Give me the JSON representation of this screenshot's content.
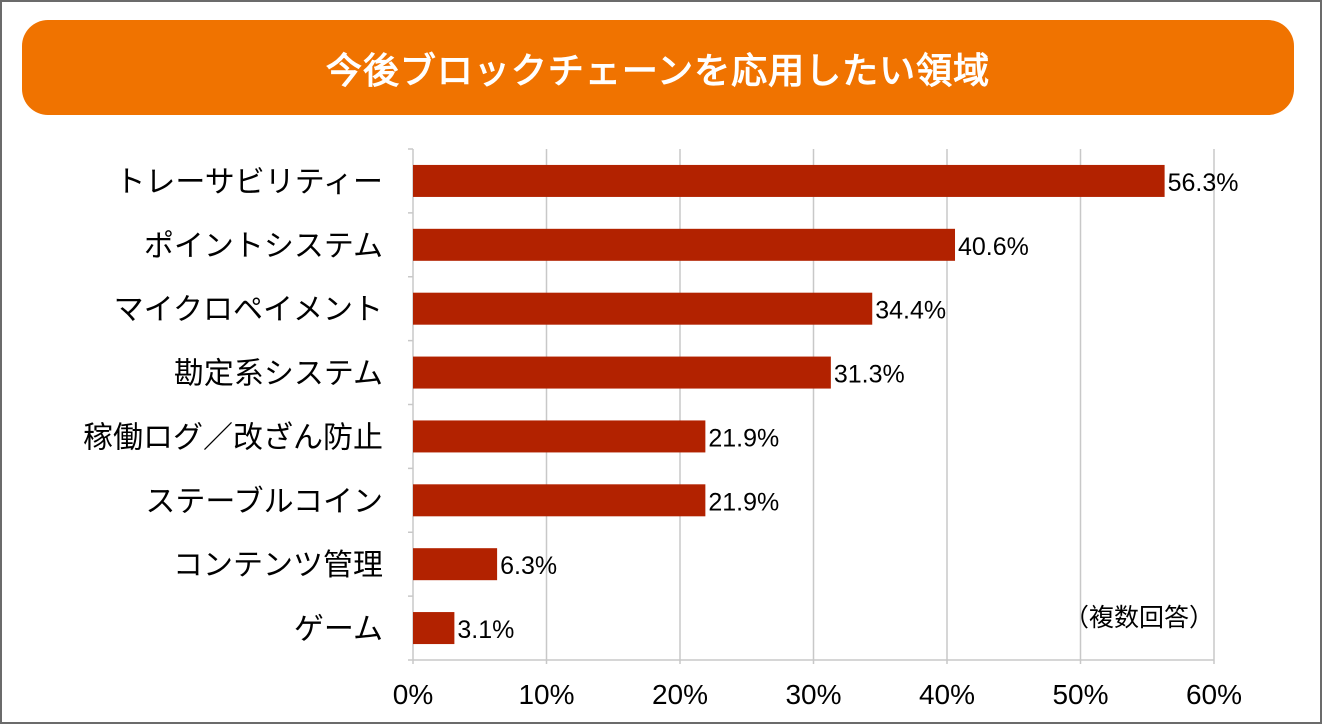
{
  "colors": {
    "title_bg": "#F07300",
    "bar": "#B22200",
    "grid": "#c8c8c8",
    "title_text": "#ffffff"
  },
  "chart_data": {
    "type": "bar",
    "orientation": "horizontal",
    "title": "今後ブロックチェーンを応用したい領域",
    "categories": [
      "トレーサビリティー",
      "ポイントシステム",
      "マイクロペイメント",
      "勘定系システム",
      "稼働ログ／改ざん防止",
      "ステーブルコイン",
      "コンテンツ管理",
      "ゲーム"
    ],
    "values": [
      56.3,
      40.6,
      34.4,
      31.3,
      21.9,
      21.9,
      6.3,
      3.1
    ],
    "data_labels": [
      "56.3%",
      "40.6%",
      "34.4%",
      "31.3%",
      "21.9%",
      "21.9%",
      "6.3%",
      "3.1%"
    ],
    "xlim": [
      0,
      60
    ],
    "xticks": [
      0,
      10,
      20,
      30,
      40,
      50,
      60
    ],
    "xtick_labels": [
      "0%",
      "10%",
      "20%",
      "30%",
      "40%",
      "50%",
      "60%"
    ],
    "grid": true,
    "annotation": "（複数回答）"
  }
}
